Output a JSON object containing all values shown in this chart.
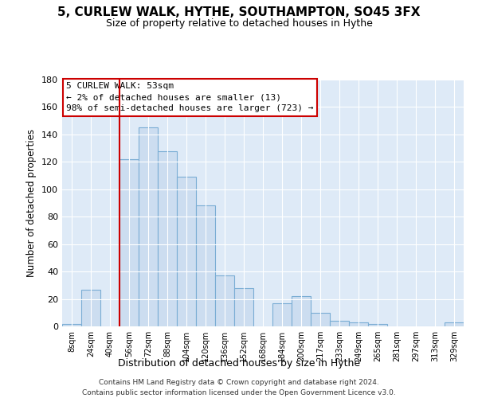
{
  "title": "5, CURLEW WALK, HYTHE, SOUTHAMPTON, SO45 3FX",
  "subtitle": "Size of property relative to detached houses in Hythe",
  "xlabel": "Distribution of detached houses by size in Hythe",
  "ylabel": "Number of detached properties",
  "bar_color": "#ccddf0",
  "bar_edge_color": "#7aadd4",
  "categories": [
    "8sqm",
    "24sqm",
    "40sqm",
    "56sqm",
    "72sqm",
    "88sqm",
    "104sqm",
    "120sqm",
    "136sqm",
    "152sqm",
    "168sqm",
    "184sqm",
    "200sqm",
    "217sqm",
    "233sqm",
    "249sqm",
    "265sqm",
    "281sqm",
    "297sqm",
    "313sqm",
    "329sqm"
  ],
  "values": [
    2,
    27,
    0,
    122,
    145,
    128,
    109,
    88,
    37,
    28,
    0,
    17,
    22,
    10,
    4,
    3,
    2,
    0,
    0,
    0,
    3
  ],
  "ylim": [
    0,
    180
  ],
  "yticks": [
    0,
    20,
    40,
    60,
    80,
    100,
    120,
    140,
    160,
    180
  ],
  "marker_index": 3,
  "marker_color": "#cc0000",
  "annotation_title": "5 CURLEW WALK: 53sqm",
  "annotation_line1": "← 2% of detached houses are smaller (13)",
  "annotation_line2": "98% of semi-detached houses are larger (723) →",
  "annotation_box_color": "#ffffff",
  "annotation_box_edge": "#cc0000",
  "footer_line1": "Contains HM Land Registry data © Crown copyright and database right 2024.",
  "footer_line2": "Contains public sector information licensed under the Open Government Licence v3.0.",
  "bg_color": "#deeaf7"
}
